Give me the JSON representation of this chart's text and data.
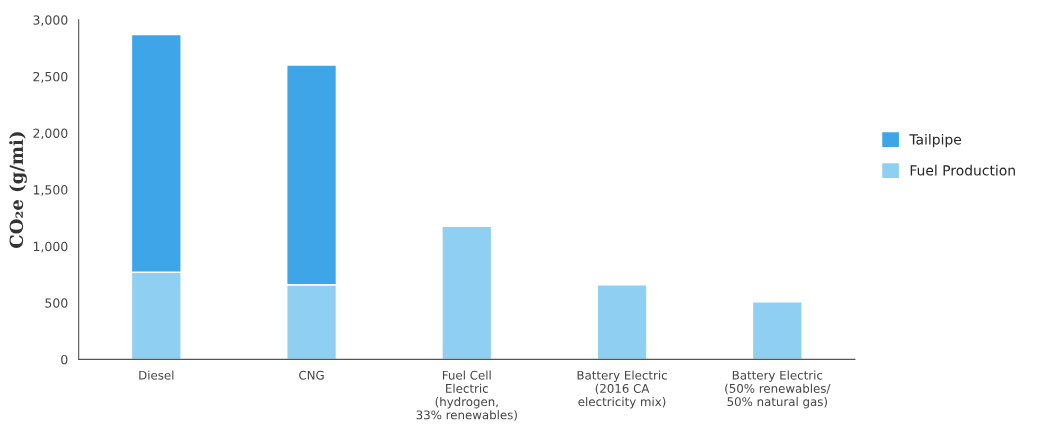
{
  "chart_data": {
    "type": "bar",
    "stacked": true,
    "ylabel": "CO₂e (g/mi)",
    "categories": [
      "Diesel",
      "CNG",
      "Fuel Cell\nElectric\n(hydrogen,\n33% renewables)",
      "Battery Electric\n(2016 CA\nelectricity mix)",
      "Battery Electric\n(50% renewables/\n50% natural gas)"
    ],
    "series": [
      {
        "name": "Fuel Production",
        "color": "#8fd0f2",
        "values": [
          770,
          660,
          1175,
          660,
          510
        ]
      },
      {
        "name": "Tailpipe",
        "color": "#3ea6e8",
        "values": [
          2100,
          1940,
          null,
          null,
          null
        ]
      }
    ],
    "ylim": [
      0,
      3000
    ],
    "yticks": [
      {
        "value": 0,
        "label": "0"
      },
      {
        "value": 500,
        "label": "500"
      },
      {
        "value": 1000,
        "label": "1,000"
      },
      {
        "value": 1500,
        "label": "1,500"
      },
      {
        "value": 2000,
        "label": "2,000"
      },
      {
        "value": 2500,
        "label": "2,500"
      },
      {
        "value": 3000,
        "label": "3,000"
      }
    ],
    "grid": false,
    "legend": "right"
  }
}
